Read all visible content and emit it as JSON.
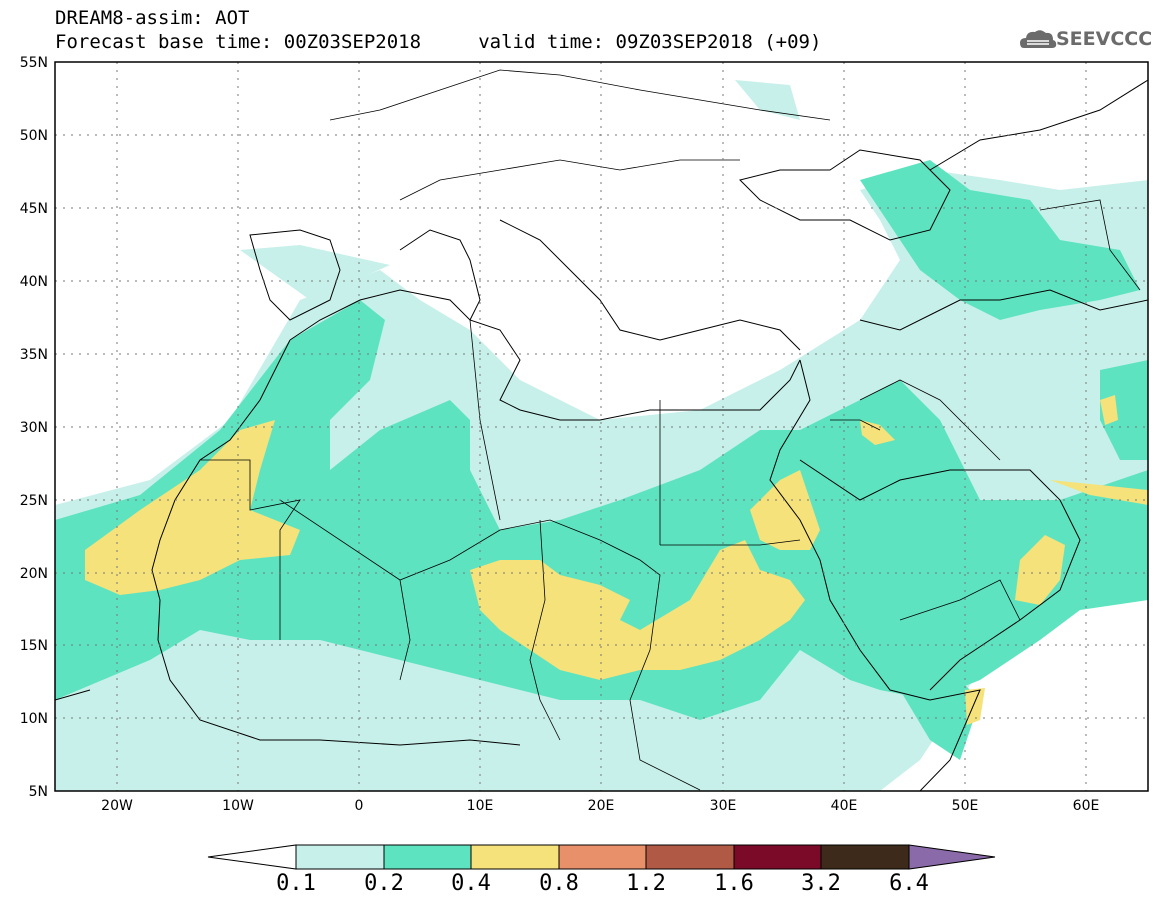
{
  "header": {
    "title_line1": "DREAM8-assim: AOT",
    "title_line2": "Forecast base time: 00Z03SEP2018     valid time: 09Z03SEP2018 (+09)",
    "logo_text": "SEEVCCC"
  },
  "map": {
    "lat_labels": [
      "55N",
      "50N",
      "45N",
      "40N",
      "35N",
      "30N",
      "25N",
      "20N",
      "15N",
      "10N",
      "5N"
    ],
    "lon_labels": [
      "20W",
      "10W",
      "0",
      "10E",
      "20E",
      "30E",
      "40E",
      "50E",
      "60E"
    ],
    "lat_range": [
      5,
      55
    ],
    "lon_range": [
      -25,
      65
    ],
    "field": "AOT",
    "grid": true
  },
  "colorbar": {
    "labels": [
      "0.1",
      "0.2",
      "0.4",
      "0.8",
      "1.2",
      "1.6",
      "3.2",
      "6.4"
    ],
    "colors": [
      "#ffffff",
      "#c8f0ea",
      "#5ee3c0",
      "#f5e27a",
      "#e8906a",
      "#b05a46",
      "#7a0a28",
      "#3d2a1a",
      "#8a6aa8"
    ]
  }
}
